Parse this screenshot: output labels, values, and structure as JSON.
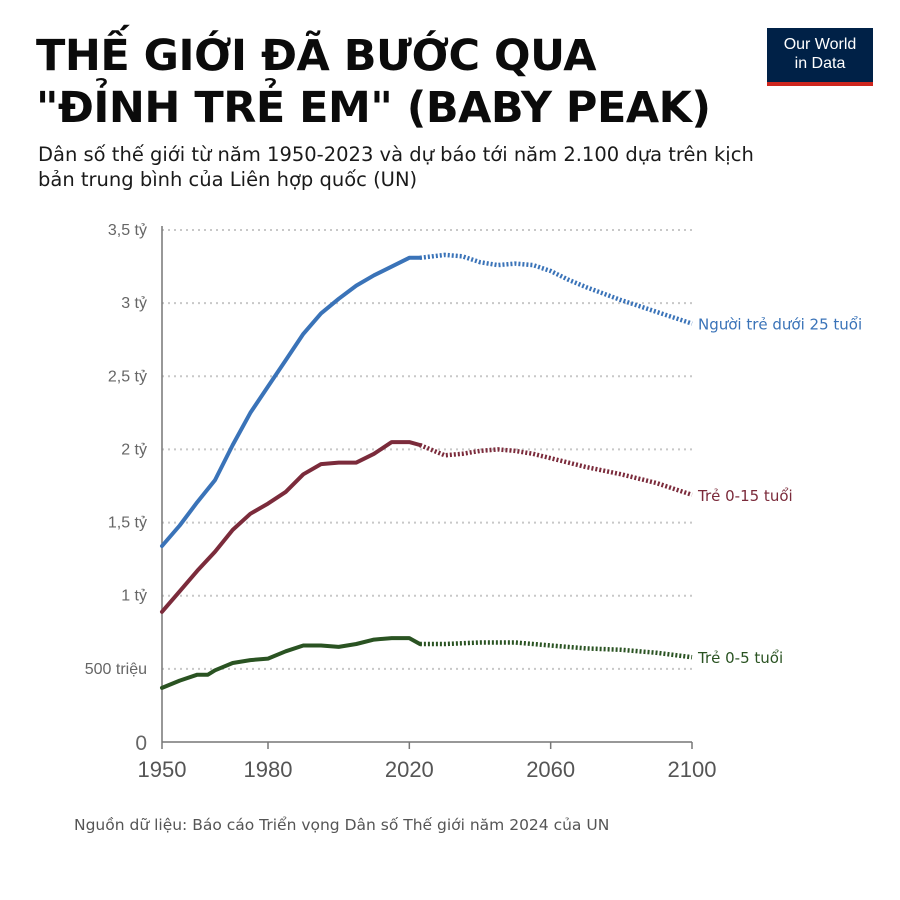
{
  "header": {
    "title_line1": "THẾ GIỚI ĐÃ BƯỚC QUA",
    "title_line2": "\"ĐỈNH TRẺ EM\" (BABY PEAK)",
    "subtitle_line1": "Dân số thế giới từ năm 1950-2023 và dự báo tới năm 2.100 dựa trên kịch",
    "subtitle_line2": "bản trung bình của Liên hợp quốc (UN)"
  },
  "logo": {
    "line1": "Our World",
    "line2": "in Data"
  },
  "source": "Nguồn dữ liệu: Báo cáo Triển vọng Dân số Thế giới năm 2024 của UN",
  "colors": {
    "under25": "#3a73b8",
    "age0_15": "#7b2b3b",
    "age0_5": "#2a5322",
    "grid": "#c8c8c8",
    "logo_bg": "#002147",
    "logo_accent": "#ce261e"
  },
  "chart_data": {
    "type": "line",
    "title": "THẾ GIỚI ĐÃ BƯỚC QUA \"ĐỈNH TRẺ EM\" (BABY PEAK)",
    "xlim": [
      1950,
      2100
    ],
    "ylim": [
      0,
      3.5
    ],
    "y_unit": "tỷ",
    "x_ticks": [
      {
        "value": 1950,
        "label": "1950"
      },
      {
        "value": 1980,
        "label": "1980"
      },
      {
        "value": 2020,
        "label": "2020"
      },
      {
        "value": 2060,
        "label": "2060"
      },
      {
        "value": 2100,
        "label": "2100"
      }
    ],
    "y_ticks": [
      {
        "value": 0,
        "label": "0"
      },
      {
        "value": 0.5,
        "label": "500 triệu"
      },
      {
        "value": 1,
        "label": "1 tỷ"
      },
      {
        "value": 1.5,
        "label": "1,5 tỷ"
      },
      {
        "value": 2,
        "label": "2 tỷ"
      },
      {
        "value": 2.5,
        "label": "2,5 tỷ"
      },
      {
        "value": 3,
        "label": "3 tỷ"
      },
      {
        "value": 3.5,
        "label": "3,5 tỷ"
      }
    ],
    "grid": "horizontal dotted",
    "projection_start": 2023,
    "series": [
      {
        "name": "Người trẻ dưới 25 tuổi",
        "color": "#3a73b8",
        "x": [
          1950,
          1955,
          1960,
          1965,
          1970,
          1975,
          1980,
          1985,
          1990,
          1995,
          2000,
          2005,
          2010,
          2015,
          2020,
          2023,
          2030,
          2035,
          2040,
          2045,
          2050,
          2055,
          2060,
          2065,
          2070,
          2080,
          2090,
          2100
        ],
        "y": [
          1.34,
          1.48,
          1.64,
          1.79,
          2.03,
          2.25,
          2.43,
          2.61,
          2.79,
          2.93,
          3.03,
          3.12,
          3.19,
          3.25,
          3.31,
          3.31,
          3.33,
          3.32,
          3.28,
          3.26,
          3.27,
          3.26,
          3.22,
          3.16,
          3.11,
          3.02,
          2.94,
          2.86
        ]
      },
      {
        "name": "Trẻ 0-15 tuổi",
        "color": "#7b2b3b",
        "x": [
          1950,
          1955,
          1960,
          1965,
          1970,
          1975,
          1980,
          1985,
          1990,
          1995,
          2000,
          2005,
          2010,
          2015,
          2020,
          2023,
          2030,
          2035,
          2040,
          2045,
          2050,
          2055,
          2060,
          2065,
          2070,
          2080,
          2090,
          2100
        ],
        "y": [
          0.89,
          1.03,
          1.17,
          1.3,
          1.45,
          1.56,
          1.63,
          1.71,
          1.83,
          1.9,
          1.91,
          1.91,
          1.97,
          2.05,
          2.05,
          2.03,
          1.96,
          1.97,
          1.99,
          2.0,
          1.99,
          1.97,
          1.94,
          1.91,
          1.88,
          1.83,
          1.77,
          1.69
        ]
      },
      {
        "name": "Trẻ 0-5 tuổi",
        "color": "#2a5322",
        "x": [
          1950,
          1955,
          1960,
          1963,
          1965,
          1970,
          1975,
          1980,
          1985,
          1990,
          1995,
          2000,
          2005,
          2010,
          2015,
          2020,
          2023,
          2030,
          2040,
          2050,
          2060,
          2070,
          2080,
          2090,
          2100
        ],
        "y": [
          0.37,
          0.42,
          0.46,
          0.46,
          0.49,
          0.54,
          0.56,
          0.57,
          0.62,
          0.66,
          0.66,
          0.65,
          0.67,
          0.7,
          0.71,
          0.71,
          0.67,
          0.67,
          0.68,
          0.68,
          0.66,
          0.64,
          0.63,
          0.61,
          0.58
        ]
      }
    ]
  }
}
